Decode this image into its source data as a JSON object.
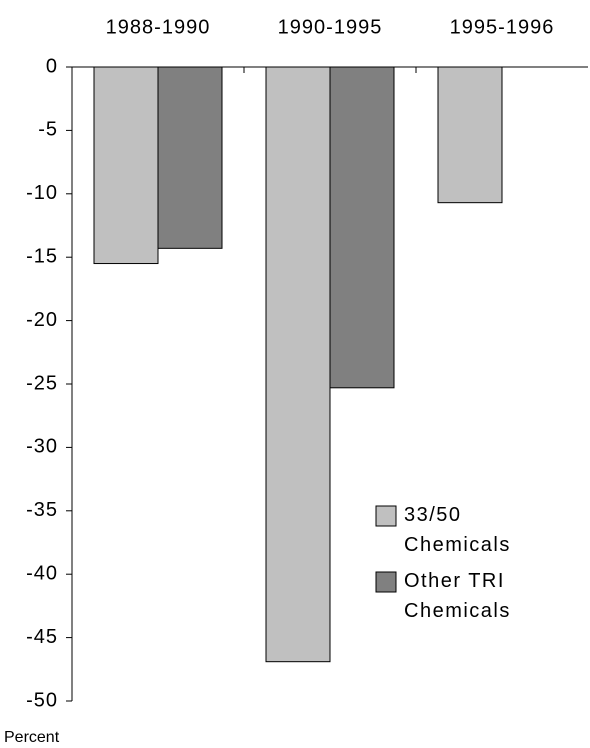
{
  "chart_data": {
    "type": "bar",
    "y_label": "Percent",
    "categories": [
      "1988-1990",
      "1990-1995",
      "1995-1996"
    ],
    "series": [
      {
        "name": "33/50 Chemicals",
        "color": "#c0c0c0",
        "values": [
          -15.5,
          -46.9,
          -10.7
        ]
      },
      {
        "name": "Other TRI Chemicals",
        "color": "#808080",
        "values": [
          -14.3,
          -25.3,
          null
        ]
      }
    ],
    "ylim": [
      -50,
      0
    ],
    "yticks": [
      0,
      -5,
      -10,
      -15,
      -20,
      -25,
      -30,
      -35,
      -40,
      -45,
      -50
    ],
    "grid": false,
    "legend": "bottom-right"
  }
}
